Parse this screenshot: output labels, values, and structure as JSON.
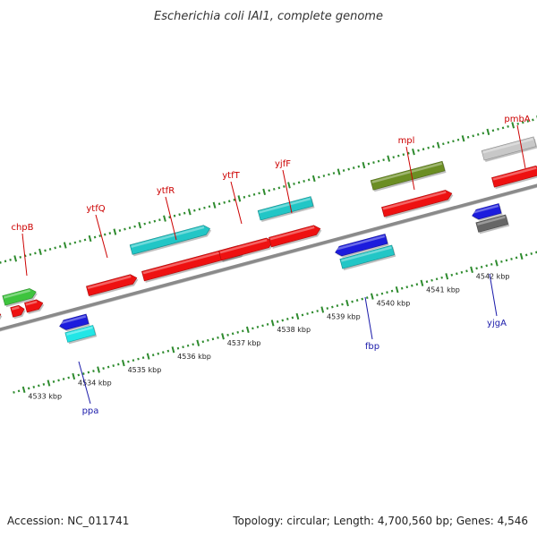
{
  "title": "Escherichia coli IAI1, complete genome",
  "footer": {
    "accession": "Accession: NC_011741",
    "summary": "Topology: circular; Length: 4,700,560 bp; Genes: 4,546"
  },
  "colors": {
    "backbone": "#8a8a8a",
    "ticks": "#2e8b2e",
    "label_forward": "#cc0000",
    "label_reverse": "#1a1aaa"
  },
  "ticks": [
    {
      "label": "4533 kbp"
    },
    {
      "label": "4534 kbp"
    },
    {
      "label": "4535 kbp"
    },
    {
      "label": "4536 kbp"
    },
    {
      "label": "4537 kbp"
    },
    {
      "label": "4538 kbp"
    },
    {
      "label": "4539 kbp"
    },
    {
      "label": "4540 kbp"
    },
    {
      "label": "4541 kbp"
    },
    {
      "label": "4542 kbp"
    }
  ],
  "labels": [
    {
      "text": "chpB",
      "strand": "forward"
    },
    {
      "text": "ytfQ",
      "strand": "forward"
    },
    {
      "text": "ytfR",
      "strand": "forward"
    },
    {
      "text": "ytfT",
      "strand": "forward"
    },
    {
      "text": "yjfF",
      "strand": "forward"
    },
    {
      "text": "mpl",
      "strand": "forward"
    },
    {
      "text": "pmbA",
      "strand": "forward"
    },
    {
      "text": "ppa",
      "strand": "reverse"
    },
    {
      "text": "fbp",
      "strand": "reverse"
    },
    {
      "text": "yjgA",
      "strand": "reverse"
    }
  ],
  "features": [
    {
      "name": "chpB",
      "color": "#3ec43e"
    },
    {
      "name": "chpB-cds-a",
      "color": "#ee1111"
    },
    {
      "name": "chpB-cds-b",
      "color": "#ee1111"
    },
    {
      "name": "left-edge-feature",
      "color": "#707070"
    },
    {
      "name": "left-edge-cds",
      "color": "#ee1111"
    },
    {
      "name": "ytfQ",
      "color": "#ee1111"
    },
    {
      "name": "ytfR-gene",
      "color": "#22c6c6"
    },
    {
      "name": "ytfR",
      "color": "#ee1111"
    },
    {
      "name": "ytfT",
      "color": "#ee1111"
    },
    {
      "name": "yjfF-gene",
      "color": "#22c6c6"
    },
    {
      "name": "yjfF",
      "color": "#ee1111"
    },
    {
      "name": "mpl-gene",
      "color": "#6b8e23"
    },
    {
      "name": "mpl",
      "color": "#ee1111"
    },
    {
      "name": "pmbA-gene",
      "color": "#c8c8c8"
    },
    {
      "name": "pmbA",
      "color": "#ee1111"
    },
    {
      "name": "ppa-gene",
      "color": "#1c1cdd"
    },
    {
      "name": "ppa",
      "color": "#22e6e6"
    },
    {
      "name": "fbp-gene",
      "color": "#1c1cdd"
    },
    {
      "name": "fbp",
      "color": "#22c6c6"
    },
    {
      "name": "yjgA-gene",
      "color": "#1c1cdd"
    },
    {
      "name": "yjgA",
      "color": "#666666"
    }
  ]
}
